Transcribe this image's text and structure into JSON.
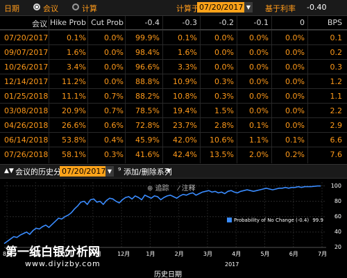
{
  "topbar": {
    "label_date": "日期",
    "option_meeting": "会议",
    "option_calc": "计算",
    "calc_date_label": "计算于",
    "calc_date_value": "07/20/2017",
    "base_rate_label": "基于利率",
    "base_rate_value": "-0.40"
  },
  "table": {
    "headers": [
      "会议",
      "Hike Prob",
      "Cut Prob",
      "-0.4",
      "-0.3",
      "-0.2",
      "-0.1",
      "0",
      "BPS"
    ],
    "rows": [
      {
        "date": "07/20/2017",
        "hike": "0.1%",
        "cut": "0.0%",
        "c1": "99.9%",
        "c2": "0.1%",
        "c3": "0.0%",
        "c4": "0.0%",
        "c5": "0.0%",
        "bps": "0.1"
      },
      {
        "date": "09/07/2017",
        "hike": "1.6%",
        "cut": "0.0%",
        "c1": "98.4%",
        "c2": "1.6%",
        "c3": "0.0%",
        "c4": "0.0%",
        "c5": "0.0%",
        "bps": "0.2"
      },
      {
        "date": "10/26/2017",
        "hike": "3.4%",
        "cut": "0.0%",
        "c1": "96.6%",
        "c2": "3.3%",
        "c3": "0.0%",
        "c4": "0.0%",
        "c5": "0.0%",
        "bps": "0.3"
      },
      {
        "date": "12/14/2017",
        "hike": "11.2%",
        "cut": "0.0%",
        "c1": "88.8%",
        "c2": "10.9%",
        "c3": "0.3%",
        "c4": "0.0%",
        "c5": "0.0%",
        "bps": "1.2"
      },
      {
        "date": "01/25/2018",
        "hike": "11.1%",
        "cut": "0.7%",
        "c1": "88.2%",
        "c2": "10.8%",
        "c3": "0.3%",
        "c4": "0.0%",
        "c5": "0.0%",
        "bps": "1.1"
      },
      {
        "date": "03/08/2018",
        "hike": "20.9%",
        "cut": "0.7%",
        "c1": "78.5%",
        "c2": "19.4%",
        "c3": "1.5%",
        "c4": "0.0%",
        "c5": "0.0%",
        "bps": "2.2"
      },
      {
        "date": "04/26/2018",
        "hike": "26.6%",
        "cut": "0.6%",
        "c1": "72.8%",
        "c2": "23.7%",
        "c3": "2.8%",
        "c4": "0.1%",
        "c5": "0.0%",
        "bps": "2.9"
      },
      {
        "date": "06/14/2018",
        "hike": "53.8%",
        "cut": "0.4%",
        "c1": "45.9%",
        "c2": "42.0%",
        "c3": "10.6%",
        "c4": "1.1%",
        "c5": "0.1%",
        "bps": "6.6"
      },
      {
        "date": "07/26/2018",
        "hike": "58.1%",
        "cut": "0.3%",
        "c1": "41.6%",
        "c2": "42.4%",
        "c3": "13.5%",
        "c4": "2.0%",
        "c5": "0.2%",
        "bps": "7.6"
      }
    ]
  },
  "chart_toolbar": {
    "history_label": "会议的历史分析",
    "history_date": "07/20/2017",
    "add_series_label": "添加/删除系列"
  },
  "chart_overlay": {
    "track_label": "追踪",
    "annotate_label": "注释"
  },
  "chart_data": {
    "type": "line",
    "series": [
      {
        "name": "Probability of No Change (-0.4)",
        "last_value_label": "99.9",
        "values": [
          25,
          28,
          31,
          34,
          33,
          36,
          38,
          40,
          37,
          42,
          45,
          44,
          47,
          49,
          46,
          50,
          54,
          58,
          57,
          60,
          62,
          65,
          70,
          74,
          79,
          80,
          76,
          82,
          83,
          79,
          80,
          76,
          81,
          84,
          83,
          80,
          78,
          82,
          85,
          86,
          83,
          87,
          85,
          82,
          88,
          86,
          84,
          87,
          86,
          82,
          85,
          87,
          88,
          86,
          84,
          87,
          89,
          88,
          90,
          91,
          88,
          90,
          92,
          93,
          94,
          92,
          93,
          91,
          92,
          90,
          93,
          94,
          92,
          91,
          93,
          94,
          95,
          94,
          93,
          94,
          95,
          96,
          97,
          96,
          95,
          96,
          97,
          97,
          98,
          97,
          98,
          98,
          99,
          98,
          99,
          99,
          99,
          99.5,
          99.9,
          99.9
        ]
      }
    ],
    "x_tick_labels": [
      "8月",
      "9月",
      "10月",
      "11月",
      "12月",
      "1月",
      "2月",
      "3月",
      "4月",
      "5月",
      "6月",
      "7月"
    ],
    "year_label": "2017",
    "y_tick_labels": [
      "20",
      "40",
      "60",
      "80",
      "100"
    ],
    "ylim": [
      20,
      105
    ],
    "xlabel": "历史日期",
    "grid": true,
    "legend": "lower-right"
  },
  "watermark": {
    "line1": "第一纸白银分析网",
    "line2": "www.diyizby.com"
  },
  "colors": {
    "accent_orange": "#ff9a1a",
    "series_blue": "#3a8cff",
    "background": "#000000"
  }
}
